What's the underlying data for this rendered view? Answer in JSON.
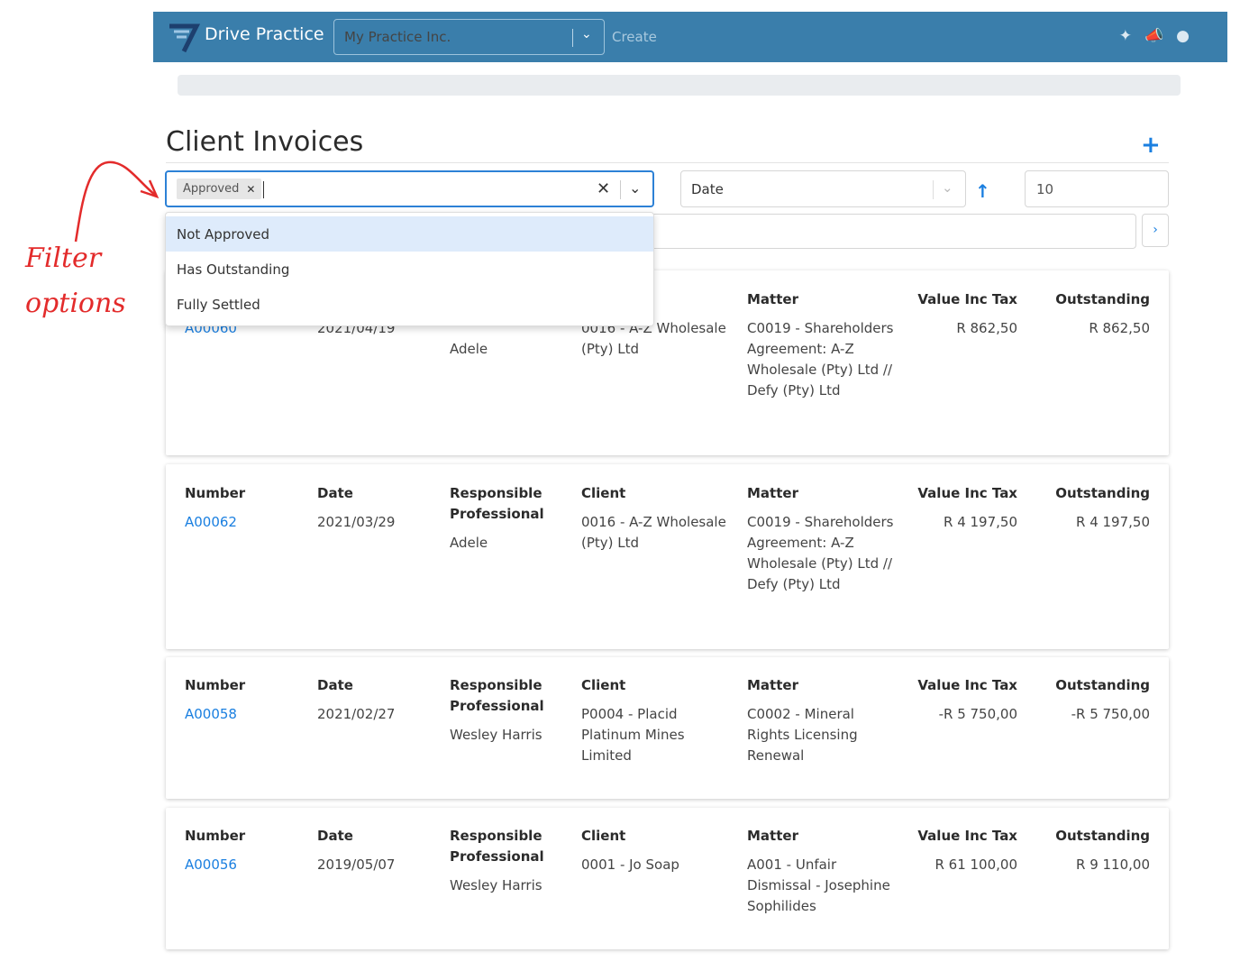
{
  "annotation": {
    "line1": "Filter",
    "line2": "options"
  },
  "navbar": {
    "brand": "Drive Practice",
    "practice": "My Practice Inc.",
    "create": "Create",
    "icons": [
      "magic-wand-icon",
      "megaphone-icon",
      "user-icon"
    ]
  },
  "page": {
    "title": "Client Invoices"
  },
  "filters": {
    "chip": "Approved",
    "options": [
      "Not Approved",
      "Has Outstanding",
      "Fully Settled"
    ],
    "sort": "Date",
    "page_size": "10"
  },
  "headers": {
    "number": "Number",
    "date": "Date",
    "responsible": "Responsible Professional",
    "client": "Client",
    "matter": "Matter",
    "value": "Value Inc Tax",
    "outstanding": "Outstanding"
  },
  "invoices": [
    {
      "number": "A00060",
      "date": "2021/04/19",
      "responsible": "Adele",
      "client": "0016 - A-Z Wholesale (Pty) Ltd",
      "matter": "C0019 - Shareholders Agreement: A-Z Wholesale (Pty) Ltd // Defy (Pty) Ltd",
      "value": "R 862,50",
      "outstanding": "R 862,50"
    },
    {
      "number": "A00062",
      "date": "2021/03/29",
      "responsible": "Adele",
      "client": "0016 - A-Z Wholesale (Pty) Ltd",
      "matter": "C0019 - Shareholders Agreement: A-Z Wholesale (Pty) Ltd // Defy (Pty) Ltd",
      "value": "R 4 197,50",
      "outstanding": "R 4 197,50"
    },
    {
      "number": "A00058",
      "date": "2021/02/27",
      "responsible": "Wesley Harris",
      "client": "P0004 - Placid Platinum Mines Limited",
      "matter": "C0002 - Mineral Rights Licensing Renewal",
      "value": "-R 5 750,00",
      "outstanding": "-R 5 750,00"
    },
    {
      "number": "A00056",
      "date": "2019/05/07",
      "responsible": "Wesley Harris",
      "client": "0001 - Jo Soap",
      "matter": "A001 - Unfair Dismissal - Josephine Sophilides",
      "value": "R 61 100,00",
      "outstanding": "R 9 110,00"
    }
  ]
}
